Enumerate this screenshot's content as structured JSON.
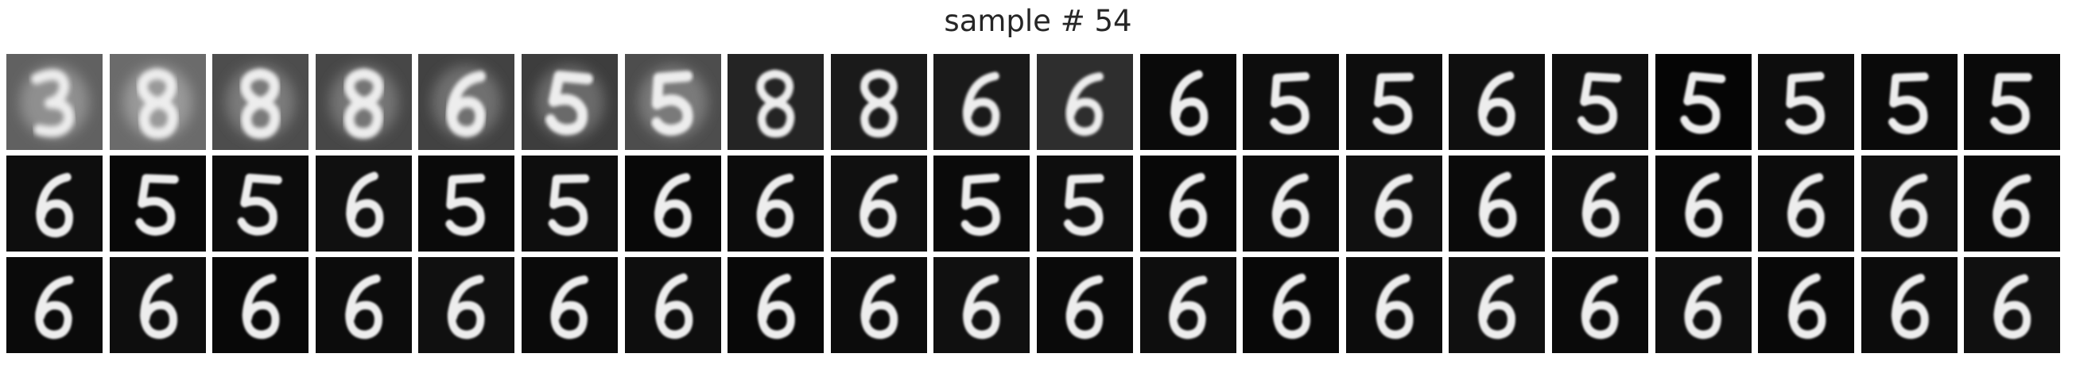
{
  "title": "sample # 54",
  "grid": {
    "rows": 3,
    "cols": 20,
    "colormap": "grayscale",
    "description_rows": [
      [
        "3",
        "8",
        "8",
        "8",
        "6",
        "5",
        "5",
        "8",
        "8",
        "6",
        "6",
        "6",
        "5",
        "5",
        "6",
        "5",
        "5",
        "5",
        "5",
        "5"
      ],
      [
        "6",
        "5",
        "5",
        "6",
        "5",
        "5",
        "6",
        "6",
        "6",
        "5",
        "5",
        "6",
        "6",
        "6",
        "6",
        "6",
        "6",
        "6",
        "6",
        "6"
      ],
      [
        "6",
        "6",
        "6",
        "6",
        "6",
        "6",
        "6",
        "6",
        "6",
        "6",
        "6",
        "6",
        "6",
        "6",
        "6",
        "6",
        "6",
        "6",
        "6",
        "6"
      ]
    ],
    "background_levels_row1": [
      0.38,
      0.42,
      0.3,
      0.28,
      0.26,
      0.24,
      0.3,
      0.14,
      0.1,
      0.1,
      0.18,
      0.04,
      0.05,
      0.05,
      0.06,
      0.06,
      0.02,
      0.05,
      0.04,
      0.04
    ],
    "blur_row1": [
      3.2,
      3.0,
      2.6,
      2.6,
      2.4,
      2.2,
      2.2,
      1.8,
      1.6,
      1.6,
      1.8,
      1.3,
      1.3,
      1.3,
      1.3,
      1.3,
      1.2,
      1.3,
      1.3,
      1.3
    ]
  }
}
